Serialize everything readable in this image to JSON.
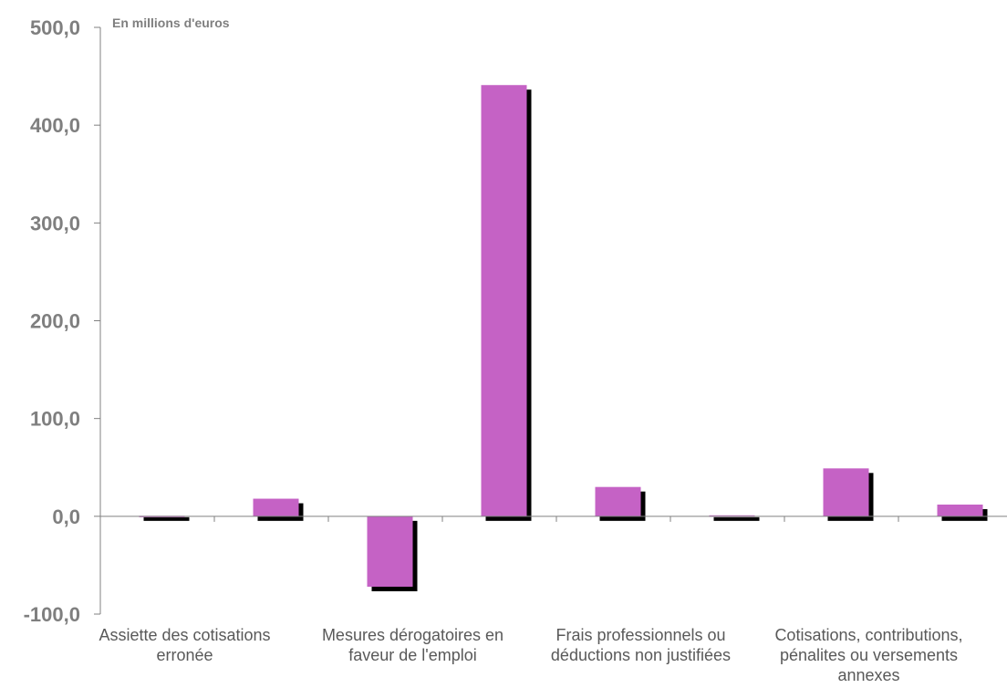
{
  "chart_data": {
    "type": "bar",
    "unit_label": "En millions d'euros",
    "categories": [
      "Assiette des cotisations erronée",
      "",
      "Mesures dérogatoires en faveur de l'emploi",
      "",
      "Frais professionnels ou déductions non justifiées",
      "",
      "Cotisations, contributions, pénalites ou versements annexes",
      ""
    ],
    "category_lines": [
      [
        "Assiette des cotisations",
        "erronée"
      ],
      [],
      [
        "Mesures dérogatoires en",
        "faveur de l'emploi"
      ],
      [],
      [
        "Frais professionnels ou",
        "déductions non justifiées"
      ],
      [],
      [
        "Cotisations, contributions,",
        "pénalites ou versements",
        "annexes"
      ],
      []
    ],
    "values": [
      0.5,
      18.0,
      -72.0,
      441.0,
      30.0,
      1.0,
      49.0,
      12.0
    ],
    "ylim": [
      -100,
      500
    ],
    "yticks": [
      "-100,0",
      "0,0",
      "100,0",
      "200,0",
      "300,0",
      "400,0",
      "500,0"
    ],
    "ytick_values": [
      -100,
      0,
      100,
      200,
      300,
      400,
      500
    ],
    "colors": {
      "bar": "#c562c5",
      "shadow": "#000000",
      "axis": "#808080"
    }
  }
}
